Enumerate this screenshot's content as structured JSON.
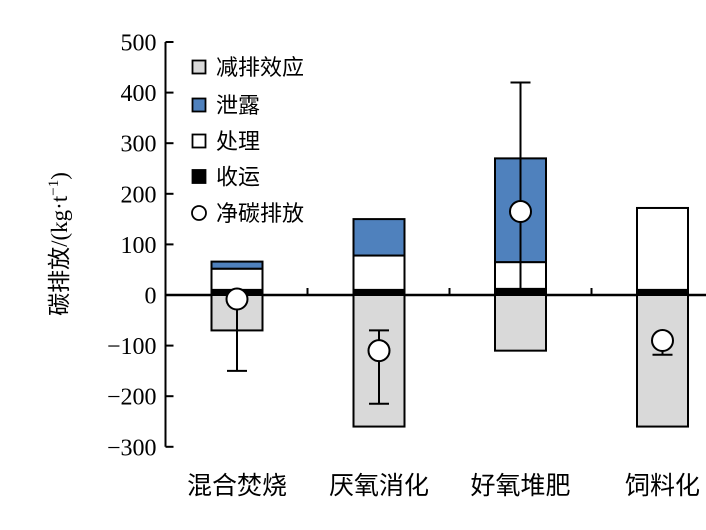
{
  "chart_data": {
    "type": "bar",
    "stacked": true,
    "title": "",
    "xlabel": "",
    "ylabel": "碳排放/(kg·t⁻¹)",
    "ylabel_parts": {
      "pre": "碳排放/(kg·t",
      "sup": "−1",
      "post": ")"
    },
    "ylim": [
      -300,
      500
    ],
    "grid": false,
    "legend_position": "top-left-inside",
    "categories": [
      "混合焚烧",
      "厌氧消化",
      "好氧堆肥",
      "饲料化"
    ],
    "series": [
      {
        "name": "收运",
        "color": "#000000",
        "values": [
          10,
          10,
          12,
          10
        ]
      },
      {
        "name": "处理",
        "color": "#FFFFFF",
        "values": [
          42,
          68,
          53,
          162
        ]
      },
      {
        "name": "泄露",
        "color": "#4F81BD",
        "values": [
          14,
          72,
          205,
          0
        ]
      },
      {
        "name": "减排效应",
        "color": "#D9D9D9",
        "values": [
          -70,
          -260,
          -110,
          -260
        ]
      }
    ],
    "net_series": {
      "name": "净碳排放",
      "marker": "open-circle",
      "values": [
        -8,
        -110,
        165,
        -90
      ]
    },
    "error_bars": [
      {
        "low": -150,
        "high": null,
        "cap_low": true,
        "cap_high": false
      },
      {
        "low": -215,
        "high": -70,
        "cap_low": true,
        "cap_high": true
      },
      {
        "low": 10,
        "high": 420,
        "cap_low": false,
        "cap_high": true
      },
      {
        "low": -118,
        "high": null,
        "cap_low": true,
        "cap_high": false
      }
    ],
    "yticks": [
      {
        "label": "500",
        "value": 500
      },
      {
        "label": "400",
        "value": 400
      },
      {
        "label": "300",
        "value": 300
      },
      {
        "label": "200",
        "value": 200
      },
      {
        "label": "100",
        "value": 100
      },
      {
        "label": "0",
        "value": 0
      },
      {
        "label": "−100",
        "value": -100
      },
      {
        "label": "−200",
        "value": -200
      },
      {
        "label": "−300",
        "value": -300
      }
    ],
    "legend": [
      {
        "label": "减排效应",
        "type": "square",
        "color": "#D9D9D9"
      },
      {
        "label": "泄露",
        "type": "square",
        "color": "#4F81BD"
      },
      {
        "label": "处理",
        "type": "square",
        "color": "#FFFFFF"
      },
      {
        "label": "收运",
        "type": "square",
        "color": "#000000"
      },
      {
        "label": "净碳排放",
        "type": "circle",
        "color": "#FFFFFF"
      }
    ],
    "colors": {
      "leakage_blue": "#4F81BD",
      "reduction_gray": "#D9D9D9",
      "axis": "#000000",
      "background": "#FFFFFF"
    }
  }
}
